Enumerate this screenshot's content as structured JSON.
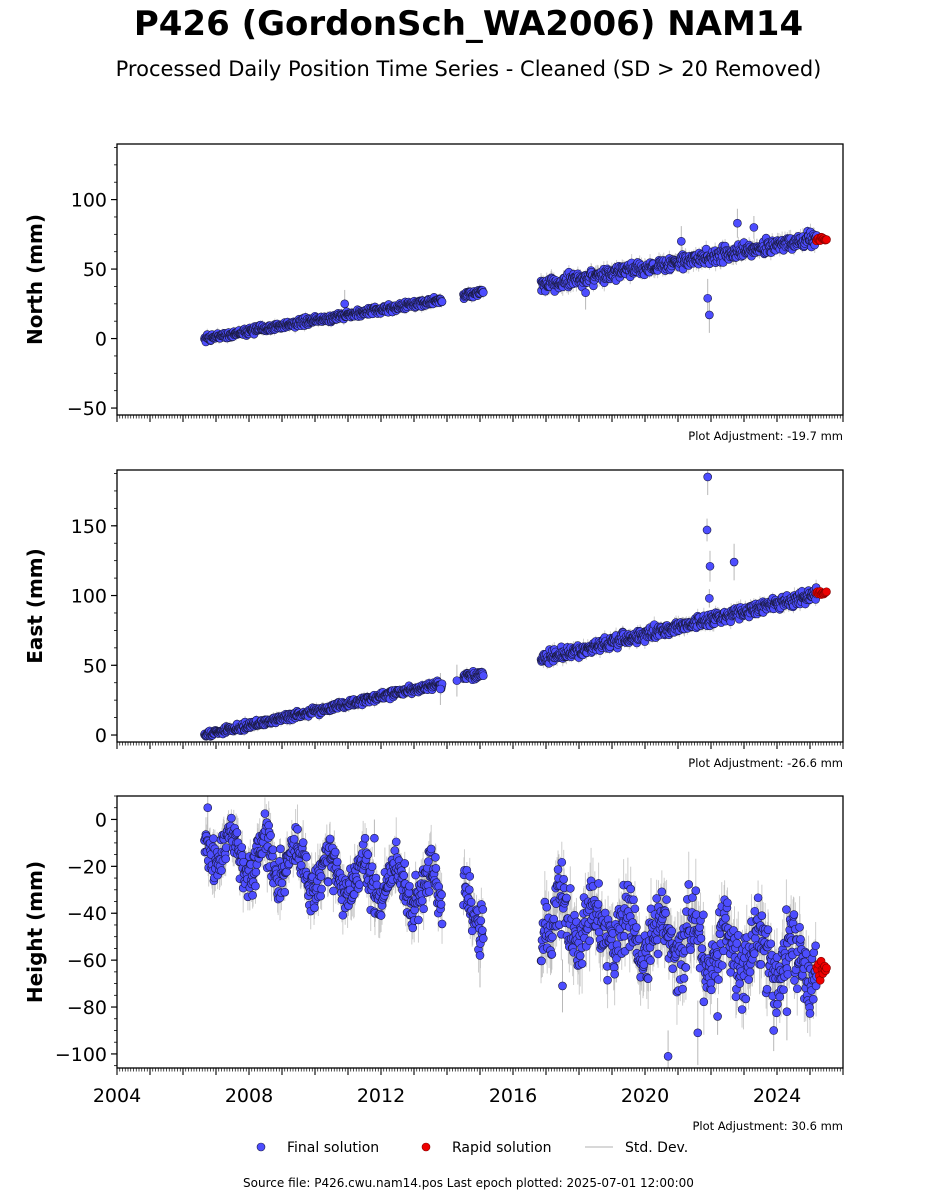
{
  "title": "P426 (GordonSch_WA2006) NAM14",
  "subtitle": "Processed Daily Position Time Series - Cleaned (SD > 20 Removed)",
  "footer": "Source file: P426.cwu.nam14.pos  Last epoch plotted: 2025-07-01 12:00:00",
  "colors": {
    "final": "#4d4dff",
    "final_edge": "#1a1a40",
    "rapid": "#ee0000",
    "stddev": "#b8b8b8"
  },
  "chart_data": [
    {
      "type": "scatter",
      "ylabel": "North (mm)",
      "adjustment": "Plot Adjustment: -19.7 mm",
      "xlim": [
        2004,
        2026
      ],
      "ylim": [
        -55,
        140
      ],
      "yticks": [
        -50,
        0,
        50,
        100
      ],
      "ytick_labels": [
        "−50",
        "0",
        "50",
        "100"
      ],
      "x_tick_labels_shown": false,
      "series": [
        {
          "name": "Final solution",
          "segments": [
            {
              "x0": 2006.65,
              "x1": 2013.85,
              "y0": 0,
              "y1": 28,
              "noise": 1.8
            },
            {
              "x0": 2014.5,
              "x1": 2015.1,
              "y0": 31,
              "y1": 34,
              "noise": 1.8
            },
            {
              "x0": 2016.85,
              "x1": 2025.2,
              "y0": 38,
              "y1": 72,
              "noise": 3.5
            }
          ],
          "outliers": [
            {
              "x": 2010.9,
              "y": 25
            },
            {
              "x": 2018.2,
              "y": 33
            },
            {
              "x": 2021.9,
              "y": 29
            },
            {
              "x": 2021.95,
              "y": 17
            },
            {
              "x": 2022.8,
              "y": 83
            },
            {
              "x": 2023.3,
              "y": 80
            },
            {
              "x": 2021.1,
              "y": 70
            }
          ]
        },
        {
          "name": "Rapid solution",
          "x0": 2025.2,
          "x1": 2025.5,
          "y": 72,
          "noise": 1.5
        }
      ]
    },
    {
      "type": "scatter",
      "ylabel": "East (mm)",
      "adjustment": "Plot Adjustment: -26.6 mm",
      "xlim": [
        2004,
        2026
      ],
      "ylim": [
        -5,
        190
      ],
      "yticks": [
        0,
        50,
        100,
        150
      ],
      "ytick_labels": [
        "0",
        "50",
        "100",
        "150"
      ],
      "x_tick_labels_shown": false,
      "series": [
        {
          "name": "Final solution",
          "segments": [
            {
              "x0": 2006.65,
              "x1": 2013.85,
              "y0": 0,
              "y1": 37,
              "noise": 1.8
            },
            {
              "x0": 2014.5,
              "x1": 2015.1,
              "y0": 42,
              "y1": 44,
              "noise": 1.8
            },
            {
              "x0": 2016.85,
              "x1": 2025.2,
              "y0": 54,
              "y1": 101,
              "noise": 3.0
            }
          ],
          "outliers": [
            {
              "x": 2021.9,
              "y": 185
            },
            {
              "x": 2021.88,
              "y": 147
            },
            {
              "x": 2021.97,
              "y": 121
            },
            {
              "x": 2022.7,
              "y": 124
            },
            {
              "x": 2021.95,
              "y": 98
            },
            {
              "x": 2013.8,
              "y": 33
            },
            {
              "x": 2014.3,
              "y": 39
            }
          ]
        },
        {
          "name": "Rapid solution",
          "x0": 2025.2,
          "x1": 2025.5,
          "y": 102,
          "noise": 1.5
        }
      ]
    },
    {
      "type": "scatter",
      "ylabel": "Height (mm)",
      "adjustment": "Plot Adjustment: 30.6 mm",
      "xlim": [
        2004,
        2026
      ],
      "ylim": [
        -106,
        10
      ],
      "yticks": [
        -100,
        -80,
        -60,
        -40,
        -20,
        0
      ],
      "ytick_labels": [
        "−100",
        "−80",
        "−60",
        "−40",
        "−20",
        "0"
      ],
      "x_ticks": [
        2004,
        2008,
        2012,
        2016,
        2020,
        2024
      ],
      "x_tick_labels": [
        "2004",
        "2008",
        "2012",
        "2016",
        "2020",
        "2024"
      ],
      "series": [
        {
          "name": "Final solution",
          "segments": [
            {
              "x0": 2006.65,
              "x1": 2013.85,
              "y0": -12,
              "y1": -32,
              "noise": 7,
              "seasonal": 8
            },
            {
              "x0": 2014.5,
              "x1": 2015.1,
              "y0": -35,
              "y1": -42,
              "noise": 7,
              "seasonal": 6
            },
            {
              "x0": 2016.85,
              "x1": 2025.2,
              "y0": -42,
              "y1": -62,
              "noise": 10,
              "seasonal": 9
            }
          ],
          "outliers": [
            {
              "x": 2006.75,
              "y": 5
            },
            {
              "x": 2020.7,
              "y": -101
            },
            {
              "x": 2021.6,
              "y": -91
            },
            {
              "x": 2022.2,
              "y": -84
            },
            {
              "x": 2023.9,
              "y": -90
            },
            {
              "x": 2024.3,
              "y": -82
            },
            {
              "x": 2015.0,
              "y": -58
            },
            {
              "x": 2017.5,
              "y": -71
            },
            {
              "x": 2011.8,
              "y": -8
            }
          ]
        },
        {
          "name": "Rapid solution",
          "x0": 2025.2,
          "x1": 2025.5,
          "y": -64,
          "noise": 5
        }
      ]
    }
  ],
  "legend": {
    "final": "Final solution",
    "rapid": "Rapid solution",
    "stddev": "Std. Dev."
  }
}
